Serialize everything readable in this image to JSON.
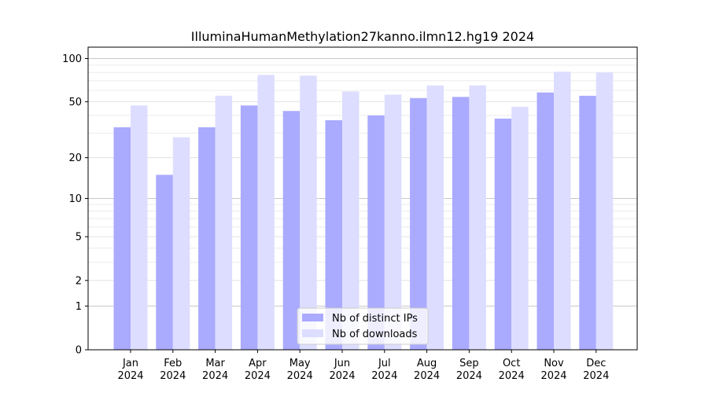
{
  "chart_data": {
    "type": "bar",
    "title": "IlluminaHumanMethylation27kanno.ilmn12.hg19 2024",
    "xlabel": "",
    "ylabel": "",
    "categories": [
      [
        "Jan",
        "2024"
      ],
      [
        "Feb",
        "2024"
      ],
      [
        "Mar",
        "2024"
      ],
      [
        "Apr",
        "2024"
      ],
      [
        "May",
        "2024"
      ],
      [
        "Jun",
        "2024"
      ],
      [
        "Jul",
        "2024"
      ],
      [
        "Aug",
        "2024"
      ],
      [
        "Sep",
        "2024"
      ],
      [
        "Oct",
        "2024"
      ],
      [
        "Nov",
        "2024"
      ],
      [
        "Dec",
        "2024"
      ]
    ],
    "series": [
      {
        "name": "Nb of distinct IPs",
        "color": "#aaaaff",
        "values": [
          33,
          15,
          33,
          47,
          43,
          37,
          40,
          53,
          54,
          38,
          58,
          55
        ]
      },
      {
        "name": "Nb of downloads",
        "color": "#ddddff",
        "values": [
          47,
          28,
          55,
          77,
          76,
          59,
          56,
          65,
          65,
          46,
          81,
          80
        ]
      }
    ],
    "scale": "log(1+y)",
    "ylim": [
      0,
      120
    ],
    "yticks": [
      0,
      1,
      2,
      5,
      10,
      20,
      50,
      100
    ],
    "grid": true,
    "legend_position": "bottom-center"
  }
}
